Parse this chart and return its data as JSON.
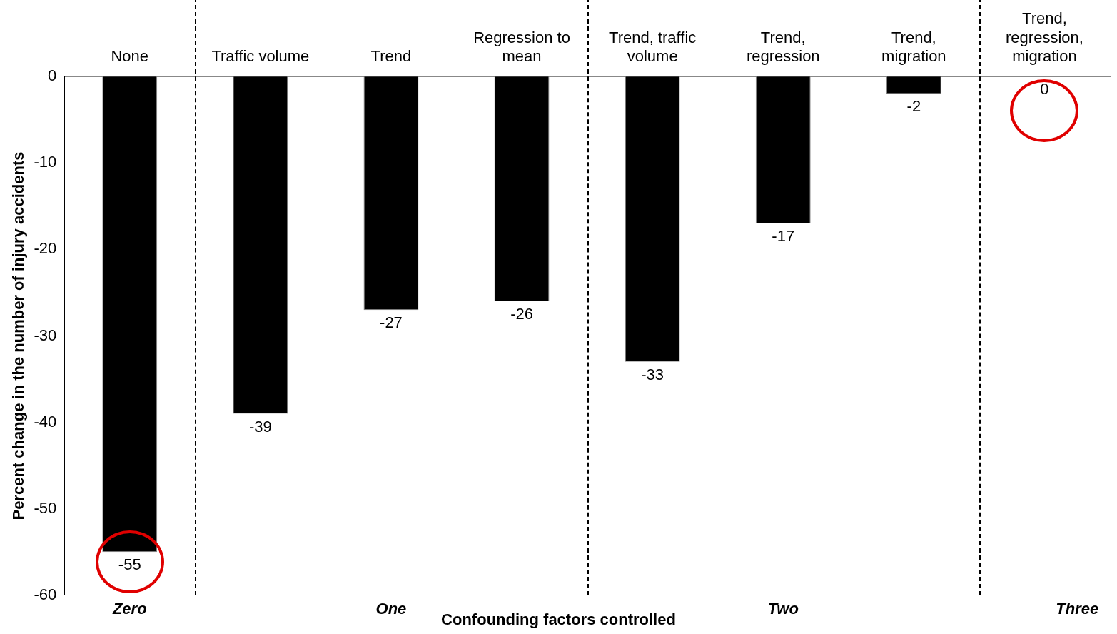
{
  "chart_data": {
    "type": "bar",
    "xlabel": "Confounding factors controlled",
    "ylabel": "Percent change in the number of injury accidents",
    "categories": [
      "None",
      "Traffic volume",
      "Trend",
      "Regression to mean",
      "Trend, traffic volume",
      "Trend, regression",
      "Trend, migration",
      "Trend, regression, migration"
    ],
    "values": [
      -55,
      -39,
      -27,
      -26,
      -33,
      -17,
      -2,
      0
    ],
    "color": "#000000",
    "ylim": [
      -60,
      0
    ],
    "yticks": [
      -60,
      -50,
      -40,
      -30,
      -20,
      -10,
      0
    ],
    "grid": false,
    "legend": false,
    "data_labels": true,
    "annotations": [
      "Zero",
      "One",
      "Two",
      "Three"
    ]
  }
}
